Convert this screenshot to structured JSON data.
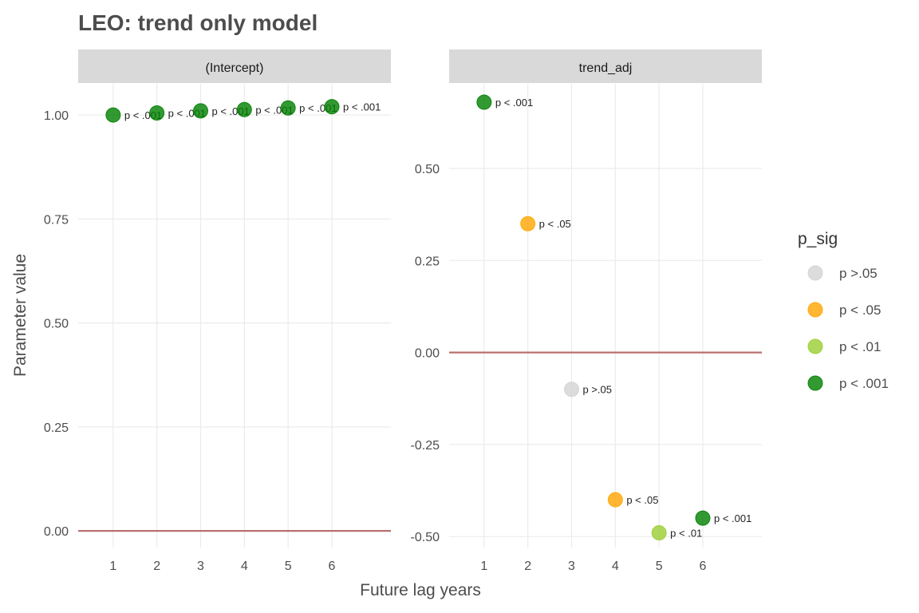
{
  "chart_data": {
    "type": "scatter",
    "title": "LEO: trend only model",
    "xlabel": "Future lag years",
    "ylabel": "Parameter value",
    "x_ticks": [
      1,
      2,
      3,
      4,
      5,
      6
    ],
    "reference_line_y": 0,
    "grid": true,
    "legend": {
      "title": "p_sig",
      "position": "right",
      "entries": [
        {
          "label": "p >.05",
          "color": "#d3d3d3"
        },
        {
          "label": "p < .05",
          "color": "#ffa500"
        },
        {
          "label": "p < .01",
          "color": "#9acd32"
        },
        {
          "label": "p < .001",
          "color": "#008000"
        }
      ]
    },
    "panels": [
      {
        "strip": "(Intercept)",
        "xlim": [
          0.2,
          7.35
        ],
        "ylim": [
          -0.04,
          1.075
        ],
        "y_ticks": [
          0.0,
          0.25,
          0.5,
          0.75,
          1.0
        ],
        "y_tick_labels": [
          "0.00",
          "0.25",
          "0.50",
          "0.75",
          "1.00"
        ],
        "points": [
          {
            "x": 1,
            "y": 1.0,
            "p": "p < .001"
          },
          {
            "x": 2,
            "y": 1.005,
            "p": "p < .001"
          },
          {
            "x": 3,
            "y": 1.01,
            "p": "p < .001"
          },
          {
            "x": 4,
            "y": 1.013,
            "p": "p < .001"
          },
          {
            "x": 5,
            "y": 1.017,
            "p": "p < .001"
          },
          {
            "x": 6,
            "y": 1.02,
            "p": "p < .001"
          }
        ]
      },
      {
        "strip": "trend_adj",
        "xlim": [
          0.2,
          7.35
        ],
        "ylim": [
          -0.53,
          0.73
        ],
        "y_ticks": [
          -0.5,
          -0.25,
          0.0,
          0.25,
          0.5
        ],
        "y_tick_labels": [
          "-0.50",
          "-0.25",
          "0.00",
          "0.25",
          "0.50"
        ],
        "points": [
          {
            "x": 1,
            "y": 0.68,
            "p": "p < .001"
          },
          {
            "x": 2,
            "y": 0.35,
            "p": "p < .05"
          },
          {
            "x": 3,
            "y": -0.1,
            "p": "p >.05"
          },
          {
            "x": 4,
            "y": -0.4,
            "p": "p < .05"
          },
          {
            "x": 5,
            "y": -0.49,
            "p": "p < .01"
          },
          {
            "x": 6,
            "y": -0.45,
            "p": "p < .001"
          }
        ]
      }
    ]
  }
}
